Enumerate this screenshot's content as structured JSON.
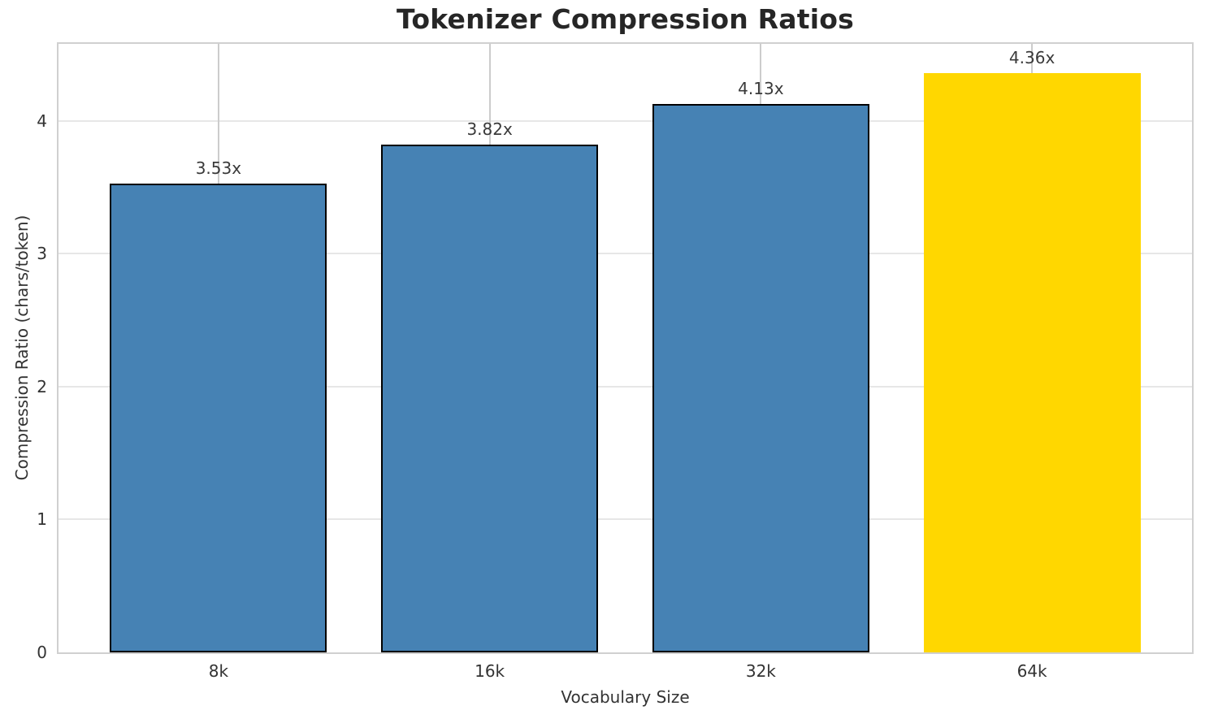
{
  "chart_data": {
    "type": "bar",
    "title": "Tokenizer Compression Ratios",
    "xlabel": "Vocabulary Size",
    "ylabel": "Compression Ratio (chars/token)",
    "categories": [
      "8k",
      "16k",
      "32k",
      "64k"
    ],
    "values": [
      3.53,
      3.82,
      4.13,
      4.36
    ],
    "value_labels": [
      "3.53x",
      "3.82x",
      "4.13x",
      "4.36x"
    ],
    "bar_colors": [
      "#4682B4",
      "#4682B4",
      "#4682B4",
      "#FFD700"
    ],
    "bar_edge_colors": [
      "#000000",
      "#000000",
      "#000000",
      "none"
    ],
    "yticks": [
      0,
      1,
      2,
      3,
      4
    ],
    "ylim": [
      0,
      4.58
    ],
    "grid": true,
    "legend_position": "none"
  },
  "colors": {
    "bar_default": "#4682B4",
    "bar_highlight": "#FFD700",
    "bar_edge": "#000000",
    "grid_horizontal": "#e7e7e7",
    "grid_vertical": "#cccccc",
    "spine": "#d0d0d0",
    "title_text": "#262626",
    "axis_text": "#333333",
    "background": "#ffffff"
  }
}
